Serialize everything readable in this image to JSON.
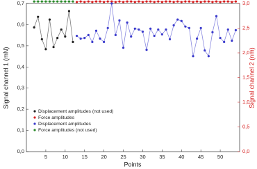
{
  "chart_data": {
    "type": "line",
    "x_label": "Points",
    "y_label": "Signal channel 1 (mN)",
    "y2_label": "Signal channel 2 (nm)",
    "y2_color": "#d62020",
    "xlim": [
      0,
      55
    ],
    "xticks": [
      5,
      10,
      15,
      20,
      25,
      30,
      35,
      40,
      45,
      50
    ],
    "ylim": [
      0,
      0.7
    ],
    "yticks": [
      {
        "value": 0,
        "label": "0,0"
      },
      {
        "value": 0.1,
        "label": "0,1"
      },
      {
        "value": 0.2,
        "label": "0,2"
      },
      {
        "value": 0.3,
        "label": "0,3"
      },
      {
        "value": 0.4,
        "label": "0,4"
      },
      {
        "value": 0.5,
        "label": "0,5"
      },
      {
        "value": 0.6,
        "label": "0,6"
      },
      {
        "value": 0.7,
        "label": "0,7"
      }
    ],
    "y2lim": [
      0,
      3
    ],
    "y2ticks": [
      {
        "value": 0,
        "label": "0,0"
      },
      {
        "value": 0.5,
        "label": "0,5"
      },
      {
        "value": 1,
        "label": "1,0"
      },
      {
        "value": 1.5,
        "label": "1,5"
      },
      {
        "value": 2,
        "label": "2,0"
      },
      {
        "value": 2.5,
        "label": "2,5"
      },
      {
        "value": 3,
        "label": "3,0"
      }
    ],
    "legend_position": "lower left",
    "series": [
      {
        "name": "Displacement amplitudes (not used)",
        "color": "#222222",
        "x": [
          2,
          3,
          4,
          5,
          6,
          7,
          8,
          9,
          10,
          11,
          12
        ],
        "values": [
          0.587,
          0.637,
          0.531,
          0.484,
          0.624,
          0.494,
          0.537,
          0.577,
          0.544,
          0.664,
          0.518
        ]
      },
      {
        "name": "Force amplitudes",
        "color": "#d62020",
        "axis": "y2",
        "x": [
          13,
          14,
          15,
          16,
          17,
          18,
          19,
          20,
          21,
          22,
          23,
          24,
          25,
          26,
          27,
          28,
          29,
          30,
          31,
          32,
          33,
          34,
          35,
          36,
          37,
          38,
          39,
          40,
          41,
          42,
          43,
          44,
          45,
          46,
          47,
          48,
          49,
          50,
          51,
          52,
          53,
          54
        ],
        "values": [
          3.03,
          3.04,
          3.03,
          3.04,
          3.03,
          3.04,
          3.04,
          3.03,
          3.04,
          3.04,
          3.03,
          3.04,
          3.03,
          3.04,
          3.04,
          3.03,
          3.04,
          3.03,
          3.04,
          3.04,
          3.03,
          3.04,
          3.03,
          3.04,
          3.04,
          3.03,
          3.04,
          3.03,
          3.04,
          3.04,
          3.03,
          3.04,
          3.03,
          3.04,
          3.04,
          3.03,
          3.04,
          3.03,
          3.04,
          3.04,
          3.03,
          3.04
        ]
      },
      {
        "name": "Displacement amplitudes",
        "color": "#3a3acc",
        "x": [
          13,
          14,
          15,
          16,
          17,
          18,
          19,
          20,
          21,
          22,
          23,
          24,
          25,
          26,
          27,
          28,
          29,
          30,
          31,
          32,
          33,
          34,
          35,
          36,
          37,
          38,
          39,
          40,
          41,
          42,
          43,
          44,
          45,
          46,
          47,
          48,
          49,
          50,
          51,
          52,
          53,
          54
        ],
        "values": [
          0.547,
          0.534,
          0.537,
          0.551,
          0.518,
          0.571,
          0.534,
          0.518,
          0.584,
          0.7,
          0.551,
          0.62,
          0.491,
          0.61,
          0.544,
          0.581,
          0.577,
          0.567,
          0.481,
          0.581,
          0.547,
          0.577,
          0.554,
          0.577,
          0.531,
          0.597,
          0.624,
          0.617,
          0.591,
          0.584,
          0.451,
          0.534,
          0.584,
          0.478,
          0.451,
          0.564,
          0.64,
          0.537,
          0.518,
          0.577,
          0.524,
          0.574
        ]
      },
      {
        "name": "Force amplitudes (not used)",
        "color": "#2a8a2a",
        "axis": "y2",
        "x": [
          2,
          3,
          4,
          5,
          6,
          7,
          8,
          9,
          10,
          11,
          12
        ],
        "values": [
          3.04,
          3.04,
          3.04,
          3.04,
          3.04,
          3.04,
          3.04,
          3.04,
          3.04,
          3.04,
          3.04
        ]
      }
    ]
  }
}
